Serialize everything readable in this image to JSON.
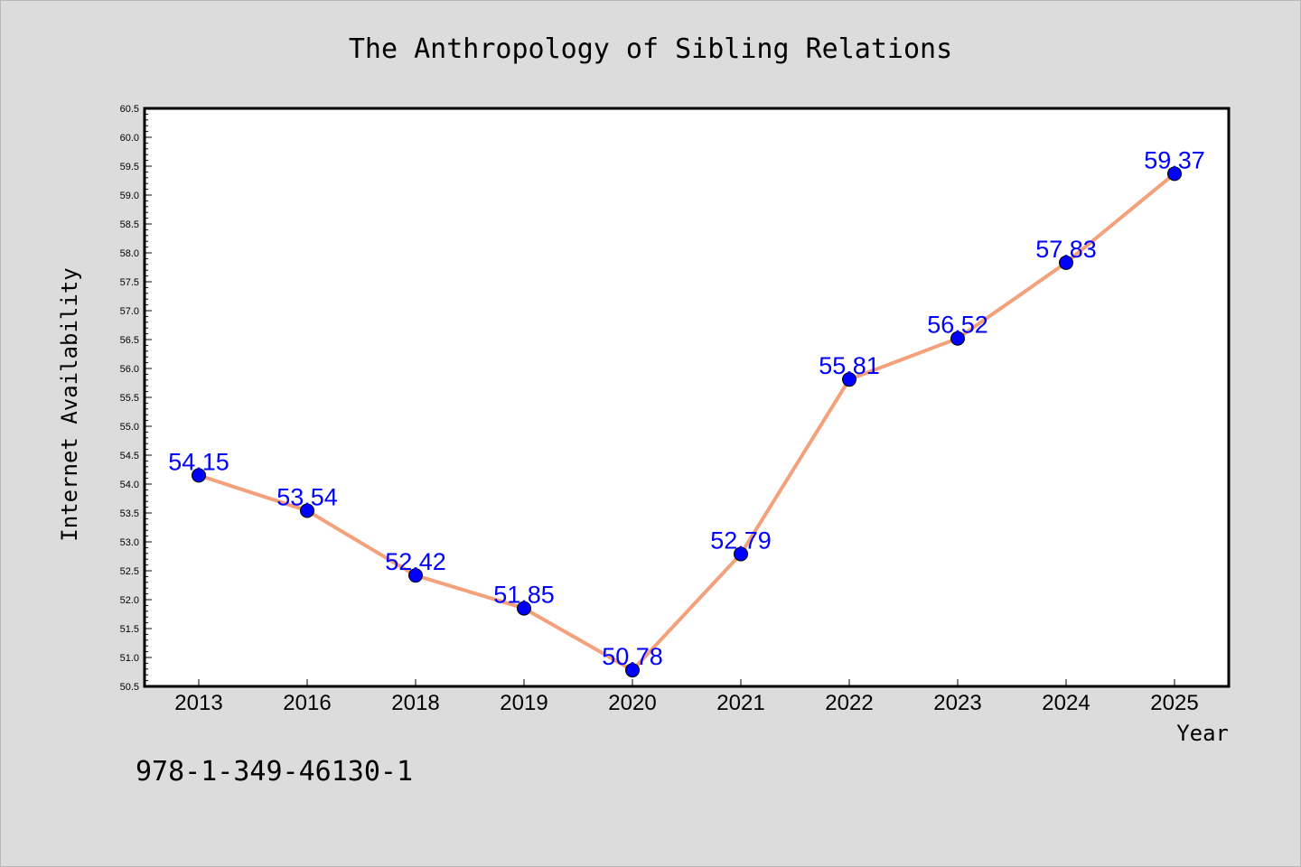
{
  "chart_data": {
    "type": "line",
    "title": "The Anthropology of Sibling Relations",
    "xlabel": "Year",
    "ylabel": "Internet Availability",
    "categories": [
      "2013",
      "2016",
      "2018",
      "2019",
      "2020",
      "2021",
      "2022",
      "2023",
      "2024",
      "2025"
    ],
    "values": [
      54.15,
      53.54,
      52.42,
      51.85,
      50.78,
      52.79,
      55.81,
      56.52,
      57.83,
      59.37
    ],
    "data_labels": [
      "54.15",
      "53.54",
      "52.42",
      "51.85",
      "50.78",
      "52.79",
      "55.81",
      "56.52",
      "57.83",
      "59.37"
    ],
    "ylim": [
      50.5,
      60.5
    ],
    "yticks": [
      "50.5",
      "51.0",
      "51.5",
      "52.0",
      "52.5",
      "53.0",
      "53.5",
      "54.0",
      "54.5",
      "55.0",
      "55.5",
      "56.0",
      "56.5",
      "57.0",
      "57.5",
      "58.0",
      "58.5",
      "59.0",
      "59.5",
      "60.0",
      "60.5"
    ],
    "grid": false,
    "colors": {
      "line": "#f4a07a",
      "marker": "#0000ff",
      "labels": "#0000ff",
      "background": "#dcdcdc",
      "plot_area": "#ffffff"
    }
  },
  "footer": {
    "code": "978-1-349-46130-1"
  }
}
